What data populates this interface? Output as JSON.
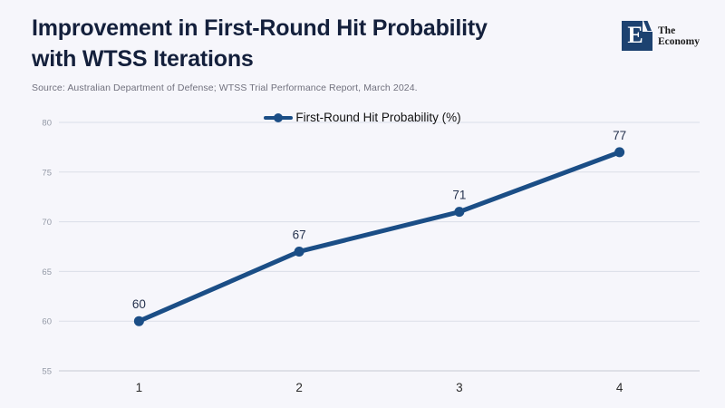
{
  "page": {
    "title_line1": "Improvement in First-Round Hit Probability",
    "title_line2": "with WTSS Iterations",
    "source": "Source: Australian Department of Defense; WTSS Trial Performance Report, March 2024."
  },
  "logo": {
    "letter": "E",
    "name_line1": "The",
    "name_line2": "Economy",
    "square_color": "#1d4270"
  },
  "legend": {
    "label": "First-Round Hit Probability (%)"
  },
  "chart_data": {
    "type": "line",
    "title": "Improvement in First-Round Hit Probability with WTSS Iterations",
    "categories": [
      "1",
      "2",
      "3",
      "4"
    ],
    "series": [
      {
        "name": "First-Round Hit Probability (%)",
        "values": [
          60,
          67,
          71,
          77
        ]
      }
    ],
    "xlabel": "",
    "ylabel": "",
    "ylim": [
      55,
      80
    ],
    "ytick_step": 5,
    "yticks": [
      55,
      60,
      65,
      70,
      75,
      80
    ],
    "grid": true,
    "show_data_labels": true,
    "legend_position": "top-center",
    "colors": {
      "line": "#1b4e86",
      "gridline": "#dbdee8",
      "axis_line": "#c6c9d3",
      "ytick_label": "#9399a6",
      "xtick_label": "#2b2b2b",
      "data_label": "#26334f"
    }
  }
}
